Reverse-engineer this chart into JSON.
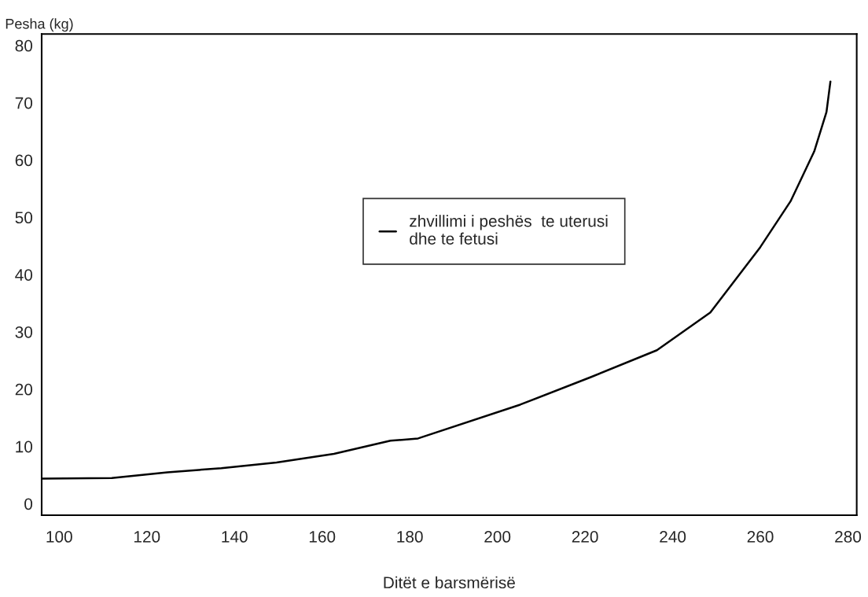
{
  "chart_data": {
    "type": "line",
    "xlabel": "Ditët e barsmërisë",
    "ylabel": "Pesha (kg)",
    "series": [
      {
        "name": "zhvillimi i peshës  te uterusi\ndhe te fetusi",
        "color": "#000000",
        "x": [
          96,
          112,
          124.7,
          137,
          149.6,
          162.7,
          175.6,
          181.9,
          205.2,
          221.3,
          236.4,
          248.6,
          260,
          266.9,
          272.3,
          275.1,
          276
        ],
        "values": [
          4.4,
          4.5,
          5.5,
          6.2,
          7.2,
          8.7,
          11.0,
          11.4,
          17.3,
          22.1,
          26.8,
          33.4,
          44.8,
          52.8,
          61.5,
          68.4,
          73.7
        ]
      }
    ],
    "xlim": [
      96,
      282
    ],
    "xticks": [
      100,
      120,
      140,
      160,
      180,
      200,
      220,
      240,
      260,
      280
    ],
    "ylim": [
      -2,
      82
    ],
    "yticks": [
      0,
      10,
      20,
      30,
      40,
      50,
      60,
      70,
      80
    ],
    "grid": false,
    "legend": "center",
    "marker": "none",
    "line_style": "solid"
  }
}
